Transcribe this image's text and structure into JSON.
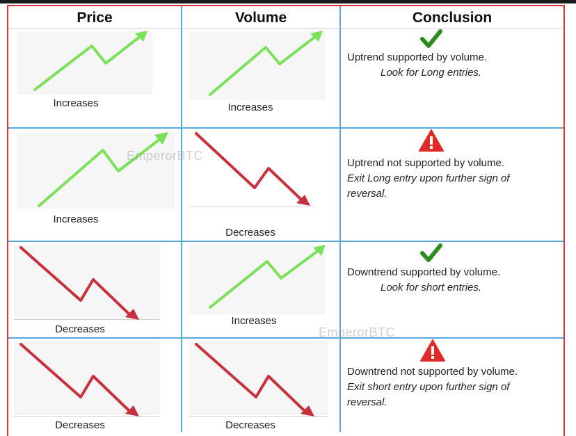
{
  "headers": {
    "price": "Price",
    "volume": "Volume",
    "conclusion": "Conclusion"
  },
  "watermark": "EmperorBTC",
  "rows": [
    {
      "price_label": "Increases",
      "volume_label": "Increases",
      "status_icon": "check-icon",
      "conclusion_line1": "Uptrend supported by volume.",
      "conclusion_line2": "Look for Long entries.",
      "conclusion_line3": ""
    },
    {
      "price_label": "Increases",
      "volume_label": "Decreases",
      "status_icon": "warning-icon",
      "conclusion_line1": "Uptrend not supported by volume.",
      "conclusion_line2": "Exit Long entry upon further sign of",
      "conclusion_line3": "reversal."
    },
    {
      "price_label": "Decreases",
      "volume_label": "Increases",
      "status_icon": "check-icon",
      "conclusion_line1": "Downtrend supported by volume.",
      "conclusion_line2": "Look for short entries.",
      "conclusion_line3": ""
    },
    {
      "price_label": "Decreases",
      "volume_label": "Decreases",
      "status_icon": "warning-icon",
      "conclusion_line1": "Downtrend not supported by volume.",
      "conclusion_line2": "Exit short entry upon further sign of",
      "conclusion_line3": "reversal."
    }
  ],
  "colors": {
    "up": "#7be05a",
    "down": "#c8303c",
    "check": "#2e8b1e",
    "warning": "#e02a2a",
    "grid": "#5aa7dc",
    "frame": "#d9363e"
  }
}
